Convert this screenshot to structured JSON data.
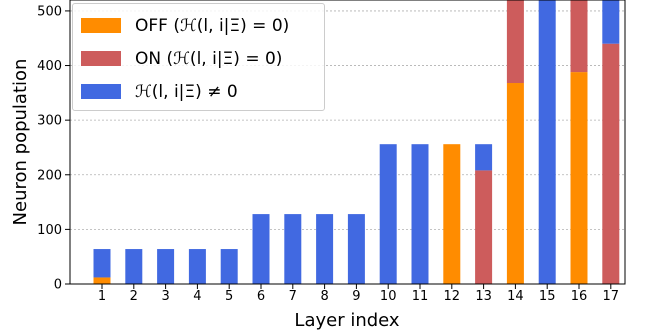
{
  "chart_data": {
    "type": "bar",
    "stacked": true,
    "xlabel": "Layer index",
    "ylabel": "Neuron population",
    "ylim": [
      0,
      520
    ],
    "yticks": [
      0,
      100,
      200,
      300,
      400,
      500
    ],
    "grid": true,
    "legend_placement": "top-left",
    "categories": [
      "1",
      "2",
      "3",
      "4",
      "5",
      "6",
      "7",
      "8",
      "9",
      "10",
      "11",
      "12",
      "13",
      "14",
      "15",
      "16",
      "17"
    ],
    "series": [
      {
        "name": "OFF (ℋ(l, i|Ξ) = 0)",
        "color": "#ff8c00",
        "values": [
          12,
          0,
          0,
          0,
          0,
          0,
          0,
          0,
          0,
          0,
          0,
          256,
          0,
          368,
          0,
          388,
          0
        ]
      },
      {
        "name": "ON (ℋ(l, i|Ξ) = 0)",
        "color": "#cd5c5c",
        "values": [
          0,
          0,
          0,
          0,
          0,
          0,
          0,
          0,
          0,
          0,
          0,
          0,
          208,
          152,
          0,
          132,
          440
        ]
      },
      {
        "name": "ℋ(l, i|Ξ) ≠ 0",
        "color": "#4169e1",
        "values": [
          52,
          64,
          64,
          64,
          64,
          128,
          128,
          128,
          128,
          256,
          256,
          0,
          48,
          0,
          520,
          0,
          80
        ]
      }
    ]
  }
}
